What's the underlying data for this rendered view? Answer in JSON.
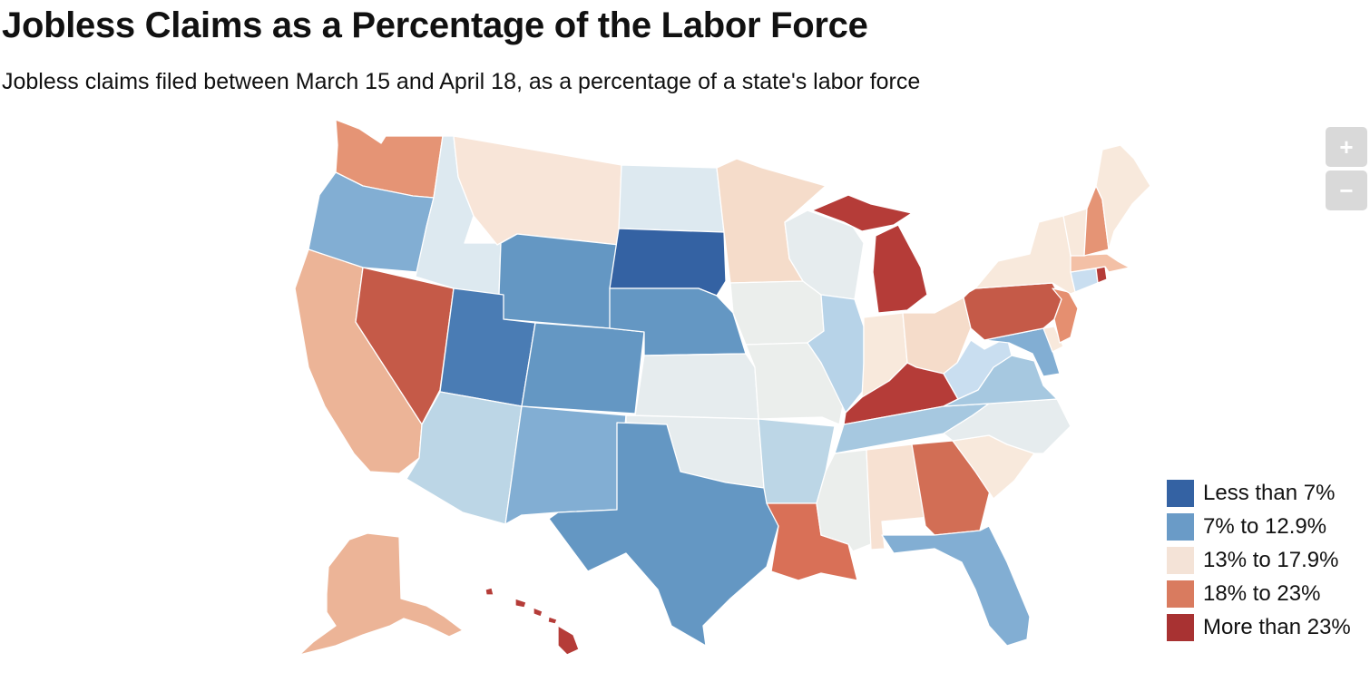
{
  "title": "Jobless Claims as a Percentage of the Labor Force",
  "subtitle": "Jobless claims filed between March 15 and April 18, as a percentage of a state's labor force",
  "zoom": {
    "in_label": "+",
    "out_label": "−"
  },
  "legend": [
    {
      "label": "Less than 7%",
      "color": "#3462a3"
    },
    {
      "label": "7% to 12.9%",
      "color": "#6a9bc7"
    },
    {
      "label": "13% to 17.9%",
      "color": "#f4e3d7"
    },
    {
      "label": "18% to 23%",
      "color": "#d97b5f"
    },
    {
      "label": "More than 23%",
      "color": "#a83232"
    }
  ],
  "colors": {
    "dark_blue": "#3462a3",
    "blue": "#4f7fb5",
    "mid_blue": "#6497c3",
    "light_blue": "#82aed3",
    "pale_blue": "#a6c8e0",
    "paler_blue": "#bcd6e6",
    "very_pale_blue": "#dde9f0",
    "neutral": "#ebeeec",
    "pale_peach": "#f8e9dc",
    "light_peach": "#f5dcca",
    "peach": "#ecb497",
    "salmon": "#e58f70",
    "orange_red": "#d97057",
    "red": "#c55a48",
    "dark_red": "#b53c38"
  },
  "states": [
    {
      "name": "Washington",
      "color": "#e59475"
    },
    {
      "name": "Oregon",
      "color": "#82aed3"
    },
    {
      "name": "California",
      "color": "#ecb497"
    },
    {
      "name": "Nevada",
      "color": "#c55a48"
    },
    {
      "name": "Idaho",
      "color": "#dde9f0"
    },
    {
      "name": "Montana",
      "color": "#f8e5d8"
    },
    {
      "name": "Wyoming",
      "color": "#6497c3"
    },
    {
      "name": "Utah",
      "color": "#4a7cb4"
    },
    {
      "name": "Arizona",
      "color": "#bcd6e6"
    },
    {
      "name": "Colorado",
      "color": "#6497c3"
    },
    {
      "name": "New Mexico",
      "color": "#82aed3"
    },
    {
      "name": "North Dakota",
      "color": "#dde9f0"
    },
    {
      "name": "South Dakota",
      "color": "#3462a3"
    },
    {
      "name": "Nebraska",
      "color": "#6497c3"
    },
    {
      "name": "Kansas",
      "color": "#e6ecee"
    },
    {
      "name": "Oklahoma",
      "color": "#e6ecee"
    },
    {
      "name": "Texas",
      "color": "#6497c3"
    },
    {
      "name": "Minnesota",
      "color": "#f5dcca"
    },
    {
      "name": "Iowa",
      "color": "#ebeeec"
    },
    {
      "name": "Missouri",
      "color": "#ebeeec"
    },
    {
      "name": "Arkansas",
      "color": "#bcd6e6"
    },
    {
      "name": "Louisiana",
      "color": "#d97057"
    },
    {
      "name": "Wisconsin",
      "color": "#e6ecee"
    },
    {
      "name": "Illinois",
      "color": "#b7d3e8"
    },
    {
      "name": "Michigan",
      "color": "#b53c38"
    },
    {
      "name": "Indiana",
      "color": "#f8e9dc"
    },
    {
      "name": "Ohio",
      "color": "#f5dcca"
    },
    {
      "name": "Kentucky",
      "color": "#b53c38"
    },
    {
      "name": "Tennessee",
      "color": "#a6c8e0"
    },
    {
      "name": "Mississippi",
      "color": "#ebeeec"
    },
    {
      "name": "Alabama",
      "color": "#f7e1d2"
    },
    {
      "name": "Georgia",
      "color": "#d26e55"
    },
    {
      "name": "Florida",
      "color": "#82aed3"
    },
    {
      "name": "South Carolina",
      "color": "#f8e9dc"
    },
    {
      "name": "North Carolina",
      "color": "#e6ecee"
    },
    {
      "name": "Virginia",
      "color": "#a6c8e0"
    },
    {
      "name": "West Virginia",
      "color": "#c9def0"
    },
    {
      "name": "Maryland",
      "color": "#82aed3"
    },
    {
      "name": "Delaware",
      "color": "#f8e9dc"
    },
    {
      "name": "Pennsylvania",
      "color": "#c55a48"
    },
    {
      "name": "New Jersey",
      "color": "#e58f70"
    },
    {
      "name": "New York",
      "color": "#f8e9dc"
    },
    {
      "name": "Connecticut",
      "color": "#c9def0"
    },
    {
      "name": "Rhode Island",
      "color": "#b53c38"
    },
    {
      "name": "Massachusetts",
      "color": "#f3c0a6"
    },
    {
      "name": "Vermont",
      "color": "#f8e9dc"
    },
    {
      "name": "New Hampshire",
      "color": "#e59475"
    },
    {
      "name": "Maine",
      "color": "#f8e9dc"
    },
    {
      "name": "Alaska",
      "color": "#ecb497"
    },
    {
      "name": "Hawaii",
      "color": "#b53c38"
    }
  ]
}
